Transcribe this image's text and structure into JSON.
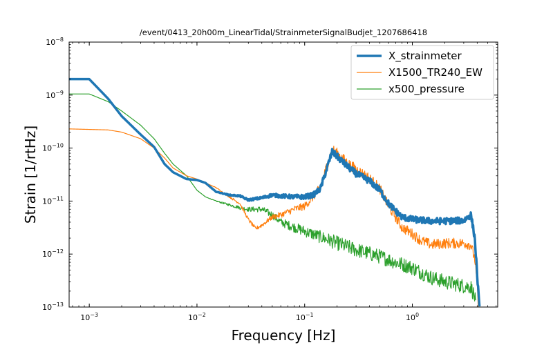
{
  "chart_data": {
    "type": "line",
    "title": "/event/0413_20h00m_LinearTidal/StrainmeterSignalBudjet_1207686418",
    "xlabel": "Frequency [Hz]",
    "ylabel": "Strain [1/rtHz]",
    "xscale": "log",
    "yscale": "log",
    "xlim": [
      0.00065,
      6.2
    ],
    "ylim": [
      1e-13,
      1e-08
    ],
    "x_ticks": [
      {
        "value": 0.001,
        "label": "10",
        "exp": "−3"
      },
      {
        "value": 0.01,
        "label": "10",
        "exp": "−2"
      },
      {
        "value": 0.1,
        "label": "10",
        "exp": "−1"
      },
      {
        "value": 1,
        "label": "10",
        "exp": "0"
      }
    ],
    "y_ticks": [
      {
        "value": 1e-13,
        "label": "10",
        "exp": "−13"
      },
      {
        "value": 1e-12,
        "label": "10",
        "exp": "−12"
      },
      {
        "value": 1e-11,
        "label": "10",
        "exp": "−11"
      },
      {
        "value": 1e-10,
        "label": "10",
        "exp": "−10"
      },
      {
        "value": 1e-09,
        "label": "10",
        "exp": "−9"
      },
      {
        "value": 1e-08,
        "label": "10",
        "exp": "−8"
      }
    ],
    "grid": false,
    "legend_position": "top-right",
    "series": [
      {
        "name": "X_strainmeter",
        "color": "#1f77b4",
        "width": 3.5,
        "noise": 0.06,
        "points": [
          [
            0.00065,
            2e-09
          ],
          [
            0.001,
            2e-09
          ],
          [
            0.0015,
            8.5e-10
          ],
          [
            0.002,
            4e-10
          ],
          [
            0.003,
            1.8e-10
          ],
          [
            0.004,
            1.05e-10
          ],
          [
            0.005,
            5e-11
          ],
          [
            0.006,
            3.5e-11
          ],
          [
            0.008,
            2.6e-11
          ],
          [
            0.01,
            2.5e-11
          ],
          [
            0.012,
            2.2e-11
          ],
          [
            0.015,
            1.5e-11
          ],
          [
            0.02,
            1.3e-11
          ],
          [
            0.025,
            1.25e-11
          ],
          [
            0.03,
            1.05e-11
          ],
          [
            0.04,
            1.15e-11
          ],
          [
            0.05,
            1.3e-11
          ],
          [
            0.06,
            1.25e-11
          ],
          [
            0.08,
            1.2e-11
          ],
          [
            0.1,
            1.2e-11
          ],
          [
            0.12,
            1.3e-11
          ],
          [
            0.14,
            1.7e-11
          ],
          [
            0.16,
            4e-11
          ],
          [
            0.18,
            8.5e-11
          ],
          [
            0.2,
            7e-11
          ],
          [
            0.25,
            4.5e-11
          ],
          [
            0.3,
            3.3e-11
          ],
          [
            0.4,
            2.4e-11
          ],
          [
            0.5,
            1.6e-11
          ],
          [
            0.6,
            9e-12
          ],
          [
            0.7,
            6.5e-12
          ],
          [
            0.8,
            5e-12
          ],
          [
            1.0,
            4.5e-12
          ],
          [
            1.5,
            4.2e-12
          ],
          [
            2.0,
            4.2e-12
          ],
          [
            3.0,
            4.3e-12
          ],
          [
            3.5,
            5.5e-12
          ],
          [
            3.8,
            2e-12
          ],
          [
            4.0,
            4e-13
          ],
          [
            4.2,
            9e-14
          ]
        ]
      },
      {
        "name": "X1500_TR240_EW",
        "color": "#ff7f0e",
        "width": 1.2,
        "noise": 0.1,
        "points": [
          [
            0.00065,
            2.3e-10
          ],
          [
            0.0015,
            2.2e-10
          ],
          [
            0.002,
            2e-10
          ],
          [
            0.003,
            1.5e-10
          ],
          [
            0.004,
            1e-10
          ],
          [
            0.005,
            6.5e-11
          ],
          [
            0.006,
            4.2e-11
          ],
          [
            0.008,
            3e-11
          ],
          [
            0.01,
            2.6e-11
          ],
          [
            0.015,
            1.8e-11
          ],
          [
            0.02,
            1.2e-11
          ],
          [
            0.025,
            9e-12
          ],
          [
            0.03,
            4.5e-12
          ],
          [
            0.035,
            3e-12
          ],
          [
            0.04,
            3.5e-12
          ],
          [
            0.05,
            5e-12
          ],
          [
            0.06,
            5.5e-12
          ],
          [
            0.08,
            7e-12
          ],
          [
            0.1,
            8e-12
          ],
          [
            0.12,
            1.2e-11
          ],
          [
            0.14,
            1.8e-11
          ],
          [
            0.16,
            4.5e-11
          ],
          [
            0.18,
            9.5e-11
          ],
          [
            0.2,
            8e-11
          ],
          [
            0.25,
            5.2e-11
          ],
          [
            0.3,
            4e-11
          ],
          [
            0.4,
            2.7e-11
          ],
          [
            0.5,
            1.7e-11
          ],
          [
            0.6,
            8e-12
          ],
          [
            0.7,
            5e-12
          ],
          [
            0.8,
            3.2e-12
          ],
          [
            1.0,
            2.4e-12
          ],
          [
            1.2,
            1.8e-12
          ],
          [
            1.5,
            1.5e-12
          ],
          [
            2.0,
            1.6e-12
          ],
          [
            3.0,
            1.6e-12
          ],
          [
            3.5,
            1.5e-12
          ],
          [
            3.8,
            8e-13
          ],
          [
            4.0,
            2.5e-13
          ],
          [
            4.1,
            9e-14
          ]
        ]
      },
      {
        "name": "x500_pressure",
        "color": "#2ca02c",
        "width": 1.2,
        "noise": 0.14,
        "points": [
          [
            0.00065,
            1.05e-09
          ],
          [
            0.001,
            1.05e-09
          ],
          [
            0.0015,
            7.5e-10
          ],
          [
            0.002,
            5e-10
          ],
          [
            0.003,
            2.7e-10
          ],
          [
            0.004,
            1.5e-10
          ],
          [
            0.005,
            8e-11
          ],
          [
            0.006,
            5e-11
          ],
          [
            0.008,
            3e-11
          ],
          [
            0.01,
            1.6e-11
          ],
          [
            0.012,
            1.2e-11
          ],
          [
            0.015,
            1e-11
          ],
          [
            0.02,
            8.5e-12
          ],
          [
            0.025,
            7.5e-12
          ],
          [
            0.03,
            7e-12
          ],
          [
            0.04,
            7e-12
          ],
          [
            0.05,
            5.5e-12
          ],
          [
            0.06,
            4e-12
          ],
          [
            0.08,
            3.2e-12
          ],
          [
            0.1,
            2.7e-12
          ],
          [
            0.15,
            2e-12
          ],
          [
            0.2,
            1.6e-12
          ],
          [
            0.3,
            1.2e-12
          ],
          [
            0.5,
            9e-13
          ],
          [
            0.7,
            7e-13
          ],
          [
            1.0,
            5.5e-13
          ],
          [
            1.5,
            3.6e-13
          ],
          [
            2.0,
            3e-13
          ],
          [
            3.0,
            2.5e-13
          ],
          [
            3.5,
            2.4e-13
          ],
          [
            3.8,
            1.5e-13
          ],
          [
            3.9,
            1e-13
          ]
        ]
      }
    ]
  }
}
